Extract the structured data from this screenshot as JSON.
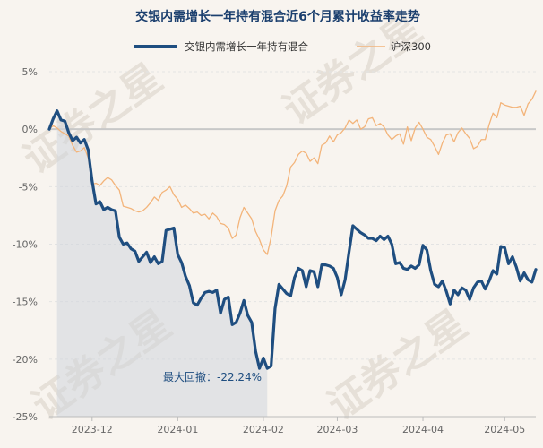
{
  "chart_data": {
    "type": "line",
    "title": "交银内需增长一年持有混合近6个月累计收益率走势",
    "xlabel": "",
    "ylabel": "",
    "ylim": [
      -25,
      5
    ],
    "yticks": [
      5,
      0,
      -5,
      -10,
      -15,
      -20,
      -25
    ],
    "ytick_labels": [
      "5%",
      "0%",
      "-5%",
      "-10%",
      "-15%",
      "-20%",
      "-25%"
    ],
    "x_range": [
      0,
      125
    ],
    "xticks": [
      {
        "label": "2023-12",
        "x": 11
      },
      {
        "label": "2024-01",
        "x": 33
      },
      {
        "label": "2024-02",
        "x": 55
      },
      {
        "label": "2024-03",
        "x": 74
      },
      {
        "label": "2024-04",
        "x": 96
      },
      {
        "label": "2024-05",
        "x": 117
      }
    ],
    "legend": "top-center",
    "series": [
      {
        "name": "交银内需增长一年持有混合",
        "color": "#1f4e80",
        "points": [
          [
            0,
            0
          ],
          [
            1,
            0.9
          ],
          [
            2,
            1.6
          ],
          [
            3,
            0.8
          ],
          [
            4,
            0.7
          ],
          [
            5,
            -0.3
          ],
          [
            6,
            -1
          ],
          [
            7,
            -0.7
          ],
          [
            8,
            -1.2
          ],
          [
            9,
            -0.9
          ],
          [
            10,
            -1.8
          ],
          [
            11,
            -4.5
          ],
          [
            12,
            -6.5
          ],
          [
            13,
            -6.3
          ],
          [
            14,
            -7
          ],
          [
            15,
            -6.8
          ],
          [
            16,
            -7
          ],
          [
            17,
            -7.1
          ],
          [
            18,
            -9.4
          ],
          [
            19,
            -10
          ],
          [
            20,
            -9.9
          ],
          [
            21,
            -10.4
          ],
          [
            22,
            -10.6
          ],
          [
            23,
            -11.5
          ],
          [
            24,
            -11.1
          ],
          [
            25,
            -10.7
          ],
          [
            26,
            -11.6
          ],
          [
            27,
            -11.1
          ],
          [
            28,
            -11.7
          ],
          [
            29,
            -11.5
          ],
          [
            30,
            -8.8
          ],
          [
            31,
            -8.7
          ],
          [
            32,
            -8.6
          ],
          [
            33,
            -10.9
          ],
          [
            34,
            -11.6
          ],
          [
            35,
            -12.8
          ],
          [
            36,
            -13.6
          ],
          [
            37,
            -15.1
          ],
          [
            38,
            -15.3
          ],
          [
            39,
            -14.7
          ],
          [
            40,
            -14.2
          ],
          [
            41,
            -14.1
          ],
          [
            42,
            -14.2
          ],
          [
            43,
            -14.0
          ],
          [
            44,
            -16.0
          ],
          [
            45,
            -14.8
          ],
          [
            46,
            -14.6
          ],
          [
            47,
            -17.0
          ],
          [
            48,
            -16.8
          ],
          [
            49,
            -16.0
          ],
          [
            50,
            -14.9
          ],
          [
            51,
            -16.2
          ],
          [
            52,
            -16.8
          ],
          [
            53,
            -19.3
          ],
          [
            54,
            -20.8
          ],
          [
            55,
            -19.9
          ],
          [
            56,
            -20.8
          ],
          [
            57,
            -20.6
          ],
          [
            58,
            -15.6
          ],
          [
            59,
            -13.5
          ],
          [
            60,
            -13.9
          ],
          [
            61,
            -14.3
          ],
          [
            62,
            -14.5
          ],
          [
            63,
            -12.9
          ],
          [
            64,
            -12.1
          ],
          [
            65,
            -12.3
          ],
          [
            66,
            -13.7
          ],
          [
            67,
            -12.3
          ],
          [
            68,
            -12.4
          ],
          [
            69,
            -13.7
          ],
          [
            70,
            -11.8
          ],
          [
            71,
            -11.8
          ],
          [
            72,
            -11.9
          ],
          [
            73,
            -12.1
          ],
          [
            74,
            -12.9
          ],
          [
            75,
            -14.4
          ],
          [
            76,
            -13.1
          ],
          [
            77,
            -10.7
          ],
          [
            78,
            -8.4
          ],
          [
            79,
            -8.7
          ],
          [
            80,
            -9.0
          ],
          [
            81,
            -9.2
          ],
          [
            82,
            -9.5
          ],
          [
            83,
            -9.5
          ],
          [
            84,
            -9.7
          ],
          [
            85,
            -9.3
          ],
          [
            86,
            -9.6
          ],
          [
            87,
            -9.3
          ],
          [
            88,
            -10.0
          ],
          [
            89,
            -11.7
          ],
          [
            90,
            -11.6
          ],
          [
            91,
            -12.1
          ],
          [
            92,
            -12.2
          ],
          [
            93,
            -11.9
          ],
          [
            94,
            -12.1
          ],
          [
            95,
            -11.8
          ],
          [
            96,
            -10.1
          ],
          [
            97,
            -10.5
          ],
          [
            98,
            -12.3
          ],
          [
            99,
            -13.5
          ],
          [
            100,
            -13.7
          ],
          [
            101,
            -13.2
          ],
          [
            102,
            -14.1
          ],
          [
            103,
            -15.2
          ],
          [
            104,
            -14.0
          ],
          [
            105,
            -14.4
          ],
          [
            106,
            -13.8
          ],
          [
            107,
            -14.0
          ],
          [
            108,
            -14.8
          ],
          [
            109,
            -13.8
          ],
          [
            110,
            -13.3
          ],
          [
            111,
            -13.2
          ],
          [
            112,
            -13.9
          ],
          [
            113,
            -13.2
          ],
          [
            114,
            -12.3
          ],
          [
            115,
            -12.6
          ],
          [
            116,
            -10.2
          ],
          [
            117,
            -10.3
          ],
          [
            118,
            -11.7
          ],
          [
            119,
            -11.1
          ],
          [
            120,
            -12.0
          ],
          [
            121,
            -13.2
          ],
          [
            122,
            -12.5
          ],
          [
            123,
            -13.1
          ],
          [
            124,
            -13.3
          ],
          [
            125,
            -12.2
          ]
        ]
      },
      {
        "name": "沪深300",
        "color": "#f3b47a",
        "points": [
          [
            0,
            0
          ],
          [
            1,
            0.3
          ],
          [
            2,
            0.1
          ],
          [
            3,
            -0.2
          ],
          [
            4,
            -0.4
          ],
          [
            5,
            -0.6
          ],
          [
            6,
            -1.4
          ],
          [
            7,
            -2.0
          ],
          [
            8,
            -1.9
          ],
          [
            9,
            -1.6
          ],
          [
            10,
            -2.5
          ],
          [
            11,
            -4.8
          ],
          [
            12,
            -4.7
          ],
          [
            13,
            -4.9
          ],
          [
            14,
            -4.5
          ],
          [
            15,
            -4.2
          ],
          [
            16,
            -4.4
          ],
          [
            17,
            -4.9
          ],
          [
            18,
            -5.3
          ],
          [
            19,
            -6.7
          ],
          [
            20,
            -6.8
          ],
          [
            21,
            -6.9
          ],
          [
            22,
            -7.1
          ],
          [
            23,
            -7.2
          ],
          [
            24,
            -7.1
          ],
          [
            25,
            -6.8
          ],
          [
            26,
            -6.4
          ],
          [
            27,
            -5.9
          ],
          [
            28,
            -6.2
          ],
          [
            29,
            -5.5
          ],
          [
            30,
            -5.3
          ],
          [
            31,
            -5.0
          ],
          [
            32,
            -5.7
          ],
          [
            33,
            -6.1
          ],
          [
            34,
            -6.8
          ],
          [
            35,
            -6.6
          ],
          [
            36,
            -6.9
          ],
          [
            37,
            -7.3
          ],
          [
            38,
            -7.2
          ],
          [
            39,
            -7.5
          ],
          [
            40,
            -7.4
          ],
          [
            41,
            -7.8
          ],
          [
            42,
            -7.3
          ],
          [
            43,
            -7.6
          ],
          [
            44,
            -8.2
          ],
          [
            45,
            -8.3
          ],
          [
            46,
            -8.6
          ],
          [
            47,
            -9.5
          ],
          [
            48,
            -9.2
          ],
          [
            49,
            -7.7
          ],
          [
            50,
            -6.8
          ],
          [
            51,
            -7.3
          ],
          [
            52,
            -7.8
          ],
          [
            53,
            -8.9
          ],
          [
            54,
            -9.6
          ],
          [
            55,
            -10.5
          ],
          [
            56,
            -10.9
          ],
          [
            57,
            -9.4
          ],
          [
            58,
            -7.1
          ],
          [
            59,
            -6.2
          ],
          [
            60,
            -5.8
          ],
          [
            61,
            -4.9
          ],
          [
            62,
            -3.3
          ],
          [
            63,
            -2.9
          ],
          [
            64,
            -2.2
          ],
          [
            65,
            -1.9
          ],
          [
            66,
            -2.1
          ],
          [
            67,
            -2.8
          ],
          [
            68,
            -2.5
          ],
          [
            69,
            -3.0
          ],
          [
            70,
            -1.4
          ],
          [
            71,
            -1.2
          ],
          [
            72,
            -0.6
          ],
          [
            73,
            -1.1
          ],
          [
            74,
            -0.5
          ],
          [
            75,
            -0.3
          ],
          [
            76,
            0.1
          ],
          [
            77,
            0.8
          ],
          [
            78,
            0.5
          ],
          [
            79,
            0.8
          ],
          [
            80,
            0.0
          ],
          [
            81,
            0.2
          ],
          [
            82,
            0.9
          ],
          [
            83,
            1.0
          ],
          [
            84,
            0.3
          ],
          [
            85,
            0.5
          ],
          [
            86,
            0.2
          ],
          [
            87,
            -0.5
          ],
          [
            88,
            -0.9
          ],
          [
            89,
            -0.6
          ],
          [
            90,
            -0.4
          ],
          [
            91,
            -1.3
          ],
          [
            92,
            0.2
          ],
          [
            93,
            -1.0
          ],
          [
            94,
            0.1
          ],
          [
            95,
            0.6
          ],
          [
            96,
            0.0
          ],
          [
            97,
            -0.7
          ],
          [
            98,
            -0.9
          ],
          [
            99,
            -1.5
          ],
          [
            100,
            -2.2
          ],
          [
            101,
            -1.2
          ],
          [
            102,
            -0.5
          ],
          [
            103,
            -0.4
          ],
          [
            104,
            -1.1
          ],
          [
            105,
            -0.3
          ],
          [
            106,
            0.1
          ],
          [
            107,
            -0.4
          ],
          [
            108,
            -0.8
          ],
          [
            109,
            -1.7
          ],
          [
            110,
            -1.5
          ],
          [
            111,
            -0.9
          ],
          [
            112,
            -0.9
          ],
          [
            113,
            0.4
          ],
          [
            114,
            1.4
          ],
          [
            115,
            1.0
          ],
          [
            116,
            2.3
          ],
          [
            117,
            2.1
          ],
          [
            118,
            2.0
          ],
          [
            119,
            1.9
          ],
          [
            120,
            1.9
          ],
          [
            121,
            2.0
          ],
          [
            122,
            1.2
          ],
          [
            123,
            2.2
          ],
          [
            124,
            2.6
          ],
          [
            125,
            3.3
          ]
        ]
      }
    ],
    "annotation": {
      "text": "最大回撤：-22.24%",
      "drawdown_start_x": 2,
      "drawdown_end_x": 56
    }
  },
  "watermark_text": "证券之星"
}
